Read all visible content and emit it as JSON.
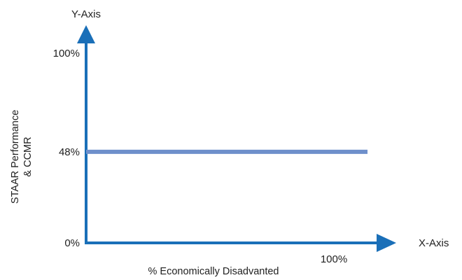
{
  "chart_data": {
    "type": "line",
    "title": "",
    "y_axis_name": "Y-Axis",
    "x_axis_name": "X-Axis",
    "ylabel": [
      "STAAR Performance",
      "& CCMR"
    ],
    "xlabel": "% Economically Disadvanted",
    "y_ticks": [
      {
        "value": 0,
        "label": "0%"
      },
      {
        "value": 48,
        "label": "48%"
      },
      {
        "value": 100,
        "label": "100%"
      }
    ],
    "x_ticks": [
      {
        "value": 100,
        "label": "100%"
      }
    ],
    "xlim": [
      0,
      100
    ],
    "ylim": [
      0,
      100
    ],
    "series": [
      {
        "x": [
          0,
          100
        ],
        "y": [
          48,
          48
        ]
      }
    ],
    "grid": false,
    "colors": {
      "axis": "#1a6fb8",
      "line": "#6e8fcb",
      "text": "#1f1f1f"
    }
  }
}
